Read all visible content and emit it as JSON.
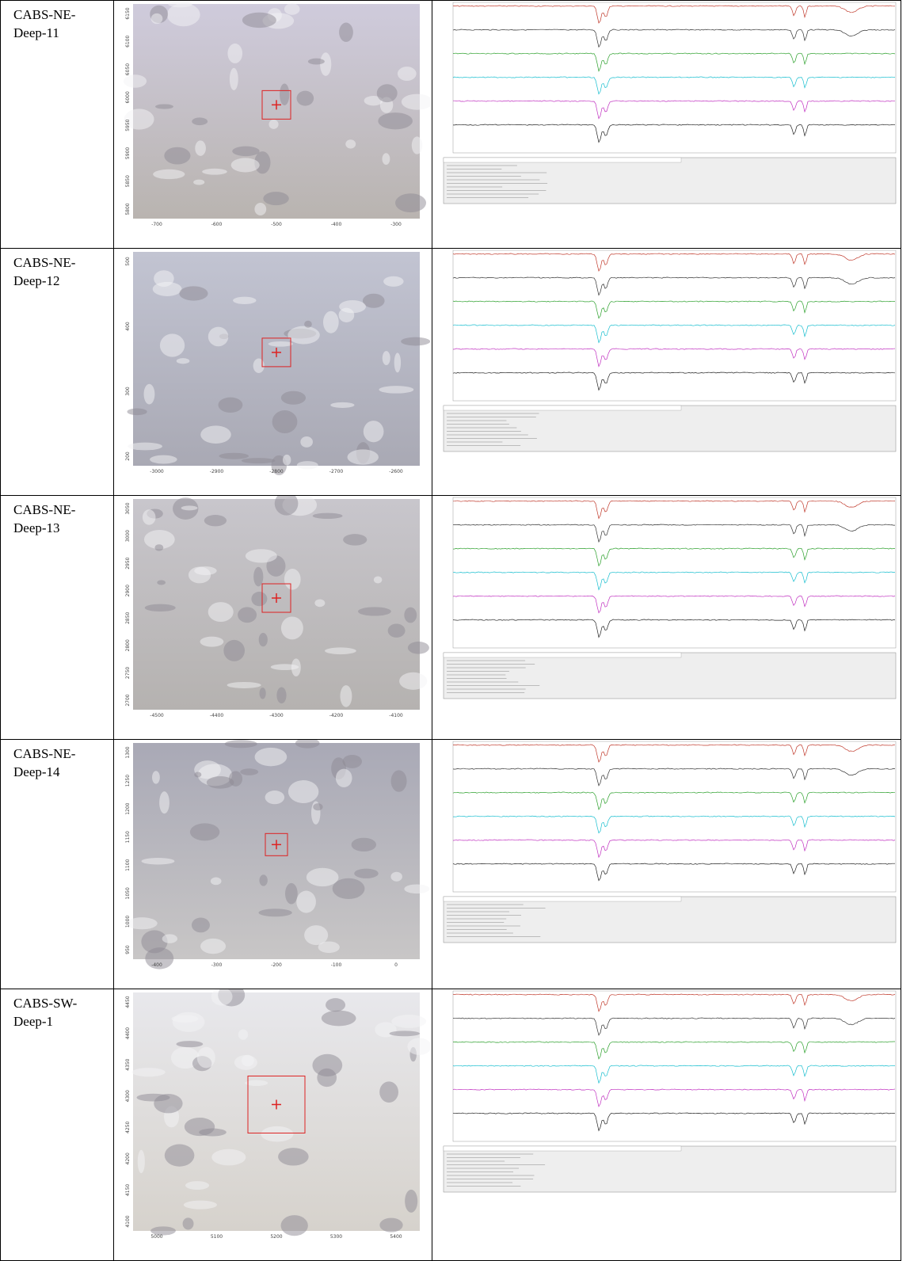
{
  "rows": [
    {
      "sample": "CABS-NE-Deep-11",
      "image_x_ticks": [
        "-700",
        "-600",
        "-500",
        "-400",
        "-300"
      ],
      "image_y_ticks": [
        "6150",
        "6100",
        "6050",
        "6000",
        "5950",
        "5900",
        "5850",
        "5800"
      ]
    },
    {
      "sample": "CABS-NE-Deep-12",
      "image_x_ticks": [
        "-3000",
        "-2900",
        "-2800",
        "-2700",
        "-2600"
      ],
      "image_y_ticks": [
        "500",
        "400",
        "300",
        "200"
      ]
    },
    {
      "sample": "CABS-NE-Deep-13",
      "image_x_ticks": [
        "-4500",
        "-4400",
        "-4300",
        "-4200",
        "-4100"
      ],
      "image_y_ticks": [
        "3050",
        "3000",
        "2950",
        "2900",
        "2850",
        "2800",
        "2750",
        "2700"
      ]
    },
    {
      "sample": "CABS-NE-Deep-14",
      "image_x_ticks": [
        "-400",
        "-300",
        "-200",
        "-100",
        "0"
      ],
      "image_y_ticks": [
        "1300",
        "1250",
        "1200",
        "1150",
        "1100",
        "1050",
        "1000",
        "950"
      ]
    },
    {
      "sample": "CABS-SW-Deep-1",
      "image_x_ticks": [
        "5000",
        "5100",
        "5200",
        "5300",
        "5400"
      ],
      "image_y_ticks": [
        "4450",
        "4400",
        "4350",
        "4300",
        "4250",
        "4200",
        "4150",
        "4100"
      ]
    }
  ]
}
